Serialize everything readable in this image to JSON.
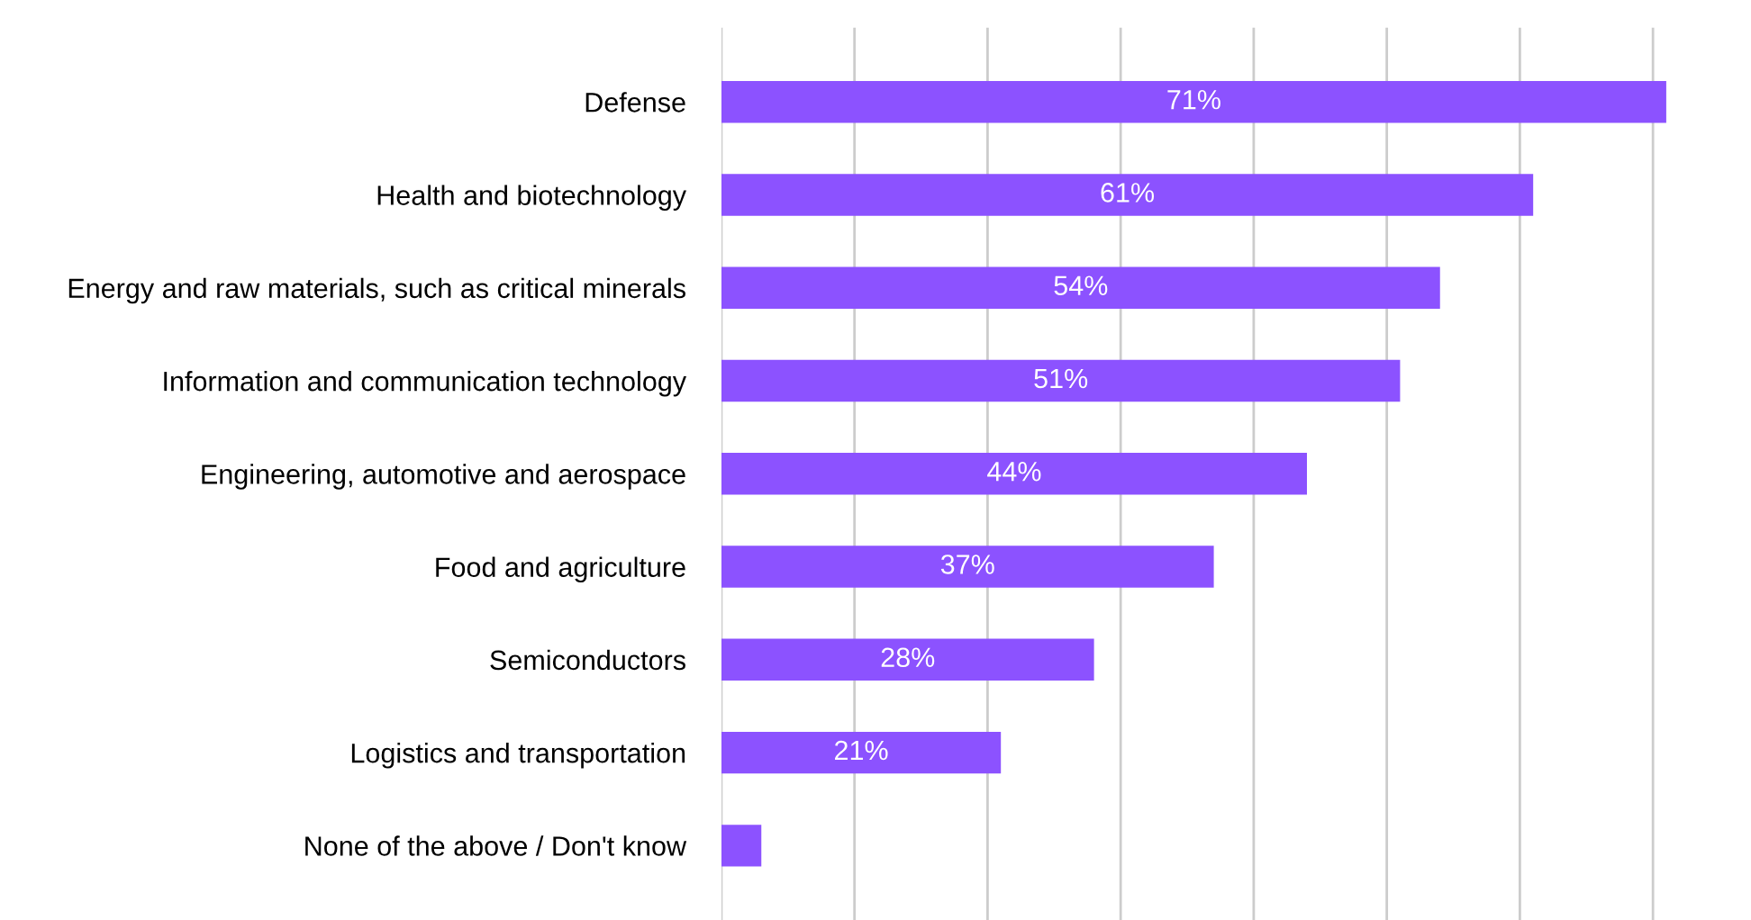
{
  "chart_data": {
    "type": "bar",
    "orientation": "horizontal",
    "categories": [
      "Defense",
      "Health and biotechnology",
      "Energy and raw materials, such as critical minerals",
      "Information and communication technology",
      "Engineering, automotive and aerospace",
      "Food and agriculture",
      "Semiconductors",
      "Logistics and transportation",
      "None of the above / Don't know"
    ],
    "values": [
      71,
      61,
      54,
      51,
      44,
      37,
      28,
      21,
      3
    ],
    "value_labels": [
      "71%",
      "61%",
      "54%",
      "51%",
      "44%",
      "37%",
      "28%",
      "21%",
      null
    ],
    "color": "#8c52ff",
    "xticks": [
      {
        "value": 0,
        "label": null
      },
      {
        "value": 10,
        "label": null
      },
      {
        "value": 20,
        "label": null
      },
      {
        "value": 30,
        "label": null
      },
      {
        "value": 40,
        "label": null
      },
      {
        "value": 50,
        "label": null
      },
      {
        "value": 60,
        "label": null
      },
      {
        "value": 70,
        "label": null
      }
    ],
    "tick_labels": "y",
    "grid": "x",
    "legend": false
  }
}
